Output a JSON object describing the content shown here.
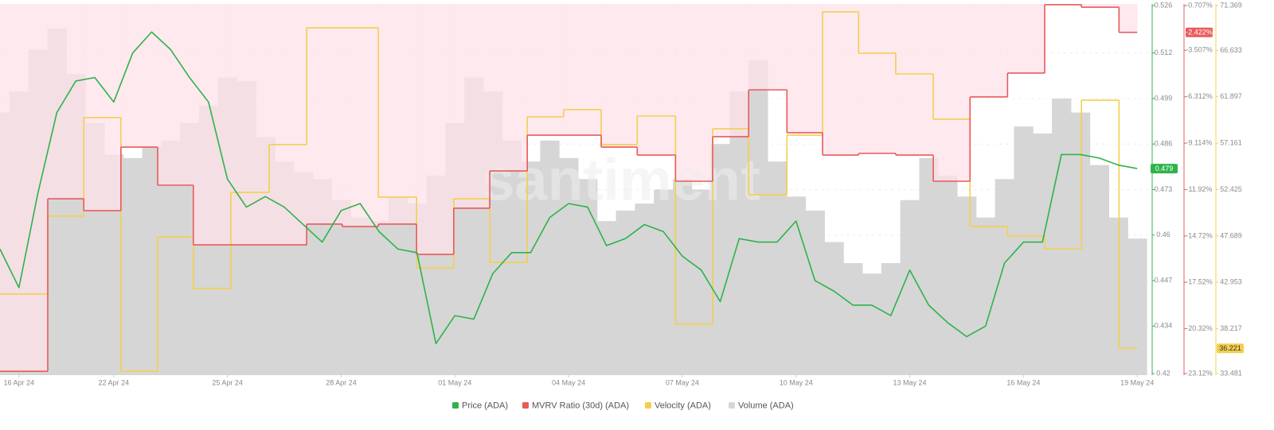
{
  "chart_data": {
    "type": "line",
    "watermark": "santiment",
    "xlim": [
      0,
      30.5
    ],
    "xticks": [
      {
        "value": 0.5,
        "label": "16 Apr 24"
      },
      {
        "value": 3,
        "label": "22 Apr 24"
      },
      {
        "value": 6,
        "label": "25 Apr 24"
      },
      {
        "value": 9,
        "label": "28 Apr 24"
      },
      {
        "value": 12,
        "label": "01 May 24"
      },
      {
        "value": 15,
        "label": "04 May 24"
      },
      {
        "value": 18,
        "label": "07 May 24"
      },
      {
        "value": 21,
        "label": "10 May 24"
      },
      {
        "value": 24,
        "label": "13 May 24"
      },
      {
        "value": 27,
        "label": "16 May 24"
      },
      {
        "value": 30,
        "label": "19 May 24"
      }
    ],
    "ylim": [
      0.42,
      0.526
    ],
    "yticks": [
      0.42,
      0.434,
      0.447,
      0.46,
      0.473,
      0.486,
      0.499,
      0.512,
      0.526
    ],
    "y2lim": [
      -23.12,
      -0.707
    ],
    "y2ticks": [
      {
        "value": -23.12,
        "label": "-23.12%"
      },
      {
        "value": -20.32,
        "label": "-20.32%"
      },
      {
        "value": -17.52,
        "label": "-17.52%"
      },
      {
        "value": -14.72,
        "label": "-14.72%"
      },
      {
        "value": -11.92,
        "label": "-11.92%"
      },
      {
        "value": -9.114,
        "label": "-9.114%"
      },
      {
        "value": -6.312,
        "label": "-6.312%"
      },
      {
        "value": -3.507,
        "label": "-3.507%"
      },
      {
        "value": -0.707,
        "label": "-0.707%"
      }
    ],
    "y3lim": [
      33.481,
      71.369
    ],
    "y3ticks": [
      33.481,
      38.217,
      42.953,
      47.689,
      52.425,
      57.161,
      61.897,
      66.633,
      71.369
    ],
    "grid": true,
    "x": [
      0,
      0.5,
      1,
      1.5,
      2,
      2.5,
      3,
      3.5,
      4,
      4.5,
      5,
      5.5,
      6,
      6.5,
      7,
      7.5,
      8,
      8.5,
      9,
      9.5,
      10,
      10.5,
      11,
      11.5,
      12,
      12.5,
      13,
      13.5,
      14,
      14.5,
      15,
      15.5,
      16,
      16.5,
      17,
      17.5,
      18,
      18.5,
      19,
      19.5,
      20,
      20.5,
      21,
      21.5,
      22,
      22.5,
      23,
      23.5,
      24,
      24.5,
      25,
      25.5,
      26,
      26.5,
      27,
      27.5,
      28,
      28.5,
      29,
      29.5,
      30
    ],
    "series": [
      {
        "name": "Price (ADA)",
        "color": "#2db34a",
        "axis": "y",
        "style": "line",
        "values": [
          0.456,
          0.445,
          0.472,
          0.495,
          0.504,
          0.505,
          0.498,
          0.512,
          0.518,
          0.513,
          0.505,
          0.498,
          0.476,
          0.468,
          0.471,
          0.468,
          0.463,
          0.458,
          0.467,
          0.469,
          0.461,
          0.456,
          0.455,
          0.429,
          0.437,
          0.436,
          0.449,
          0.455,
          0.455,
          0.465,
          0.469,
          0.468,
          0.457,
          0.459,
          0.463,
          0.461,
          0.454,
          0.45,
          0.441,
          0.459,
          0.458,
          0.458,
          0.464,
          0.447,
          0.444,
          0.44,
          0.44,
          0.437,
          0.45,
          0.44,
          0.435,
          0.431,
          0.434,
          0.452,
          0.458,
          0.458,
          0.483,
          0.483,
          0.482,
          0.48,
          0.479
        ]
      },
      {
        "name": "MVRV Ratio (30d) (ADA)",
        "color": "#e85a5c",
        "axis": "y2",
        "style": "step",
        "fill": "#fde1e9",
        "x": [
          0,
          1.26,
          2.21,
          3.19,
          4.16,
          5.1,
          6.09,
          7.1,
          8.09,
          9.03,
          9.98,
          10.99,
          11.97,
          12.92,
          13.91,
          14.87,
          15.86,
          16.81,
          17.82,
          18.8,
          19.75,
          20.76,
          21.7,
          22.65,
          23.63,
          24.62,
          25.59,
          26.58,
          27.56,
          28.53,
          29.52
        ],
        "values": [
          -22.89,
          -12.47,
          -13.19,
          -9.35,
          -11.65,
          -15.25,
          -15.25,
          -15.25,
          -14.0,
          -14.15,
          -14.0,
          -15.83,
          -13.04,
          -10.79,
          -8.63,
          -8.63,
          -9.35,
          -9.83,
          -11.41,
          -8.72,
          -5.89,
          -8.48,
          -9.83,
          -9.73,
          -9.83,
          -11.41,
          -6.32,
          -4.88,
          -0.75,
          -0.9,
          -2.422
        ],
        "value_labels": [
          null,
          null,
          null,
          null,
          null,
          null,
          null,
          null,
          null,
          null,
          null,
          null,
          null,
          null,
          null,
          null,
          null,
          null,
          null,
          null,
          null,
          null,
          null,
          null,
          null,
          null,
          null,
          null,
          null,
          null,
          "-2.422%"
        ]
      },
      {
        "name": "Velocity (ADA)",
        "color": "#f3cf4e",
        "axis": "y3",
        "style": "step",
        "x": [
          0,
          1.26,
          2.21,
          3.19,
          4.16,
          5.1,
          6.09,
          7.1,
          8.09,
          9.03,
          9.98,
          10.99,
          11.97,
          12.92,
          13.91,
          14.87,
          15.86,
          16.81,
          17.82,
          18.8,
          19.75,
          20.76,
          21.7,
          22.65,
          23.63,
          24.62,
          25.59,
          26.58,
          27.56,
          28.53,
          29.52
        ],
        "values": [
          41.76,
          49.71,
          59.77,
          33.89,
          47.6,
          42.33,
          52.14,
          57.01,
          68.94,
          68.94,
          51.66,
          44.43,
          51.49,
          45.0,
          59.85,
          60.58,
          57.01,
          59.93,
          38.68,
          58.63,
          51.9,
          57.98,
          70.56,
          66.34,
          64.23,
          59.61,
          48.65,
          47.68,
          46.38,
          61.55,
          36.221
        ]
      },
      {
        "name": "Volume (ADA)",
        "color": "#d6d6d6",
        "axis": "y",
        "style": "bar",
        "values": [
          0.495,
          0.501,
          0.513,
          0.519,
          0.506,
          0.492,
          0.483,
          0.482,
          0.485,
          0.487,
          0.492,
          0.497,
          0.505,
          0.504,
          0.488,
          0.481,
          0.478,
          0.476,
          0.47,
          0.465,
          0.464,
          0.471,
          0.469,
          0.477,
          0.492,
          0.505,
          0.501,
          0.487,
          0.481,
          0.487,
          0.482,
          0.476,
          0.464,
          0.467,
          0.469,
          0.473,
          0.476,
          0.473,
          0.486,
          0.501,
          0.51,
          0.481,
          0.471,
          0.467,
          0.458,
          0.452,
          0.449,
          0.452,
          0.47,
          0.482,
          0.477,
          0.471,
          0.465,
          0.476,
          0.491,
          0.489,
          0.499,
          0.495,
          0.48,
          0.465,
          0.459
        ]
      }
    ]
  }
}
